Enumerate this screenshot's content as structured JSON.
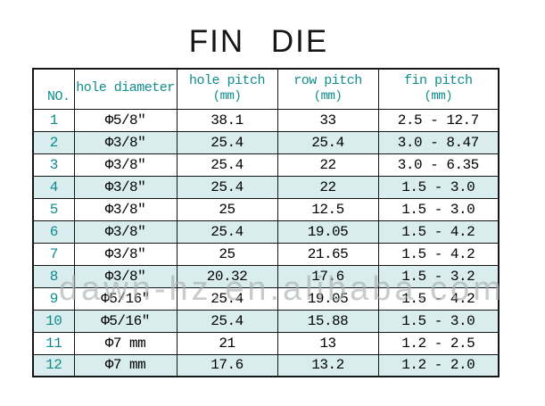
{
  "title": "FIN DIE",
  "watermark": {
    "text": "dawn-hz.en.alibaba.com"
  },
  "colors": {
    "header_text": "#0E8C8C",
    "row_number_text": "#0E8C8C",
    "shaded_row": "#D9EDEF",
    "border": "#151515",
    "data_text": "#000000",
    "watermark_text": "#A8ACAC"
  },
  "chart_data": {
    "type": "table",
    "title": "FIN DIE",
    "columns": [
      {
        "label": "NO.",
        "unit": ""
      },
      {
        "label": "hole diameter",
        "unit": ""
      },
      {
        "label": "hole pitch",
        "unit": "(mm)"
      },
      {
        "label": "row pitch",
        "unit": "(mm)"
      },
      {
        "label": "fin pitch",
        "unit": "(mm)"
      }
    ],
    "rows": [
      {
        "no": "1",
        "hole_diameter": "Φ5/8″",
        "hole_pitch": "38.1",
        "row_pitch": "33",
        "fin_pitch": "2.5 - 12.7"
      },
      {
        "no": "2",
        "hole_diameter": "Φ3/8″",
        "hole_pitch": "25.4",
        "row_pitch": "25.4",
        "fin_pitch": "3.0 - 8.47"
      },
      {
        "no": "3",
        "hole_diameter": "Φ3/8″",
        "hole_pitch": "25.4",
        "row_pitch": "22",
        "fin_pitch": "3.0 - 6.35"
      },
      {
        "no": "4",
        "hole_diameter": "Φ3/8″",
        "hole_pitch": "25.4",
        "row_pitch": "22",
        "fin_pitch": "1.5 - 3.0"
      },
      {
        "no": "5",
        "hole_diameter": "Φ3/8″",
        "hole_pitch": "25",
        "row_pitch": "12.5",
        "fin_pitch": "1.5 - 3.0"
      },
      {
        "no": "6",
        "hole_diameter": "Φ3/8″",
        "hole_pitch": "25.4",
        "row_pitch": "19.05",
        "fin_pitch": "1.5 - 4.2"
      },
      {
        "no": "7",
        "hole_diameter": "Φ3/8″",
        "hole_pitch": "25",
        "row_pitch": "21.65",
        "fin_pitch": "1.5 - 4.2"
      },
      {
        "no": "8",
        "hole_diameter": "Φ3/8″",
        "hole_pitch": "20.32",
        "row_pitch": "17.6",
        "fin_pitch": "1.5 - 3.2"
      },
      {
        "no": "9",
        "hole_diameter": "Φ5/16″",
        "hole_pitch": "25.4",
        "row_pitch": "19.05",
        "fin_pitch": "1.5 - 4.2"
      },
      {
        "no": "10",
        "hole_diameter": "Φ5/16″",
        "hole_pitch": "25.4",
        "row_pitch": "15.88",
        "fin_pitch": "1.5 - 3.0"
      },
      {
        "no": "11",
        "hole_diameter": "Φ7 mm",
        "hole_pitch": "21",
        "row_pitch": "13",
        "fin_pitch": "1.2 - 2.5"
      },
      {
        "no": "12",
        "hole_diameter": "Φ7 mm",
        "hole_pitch": "17.6",
        "row_pitch": "13.2",
        "fin_pitch": "1.2 - 2.0"
      }
    ]
  }
}
